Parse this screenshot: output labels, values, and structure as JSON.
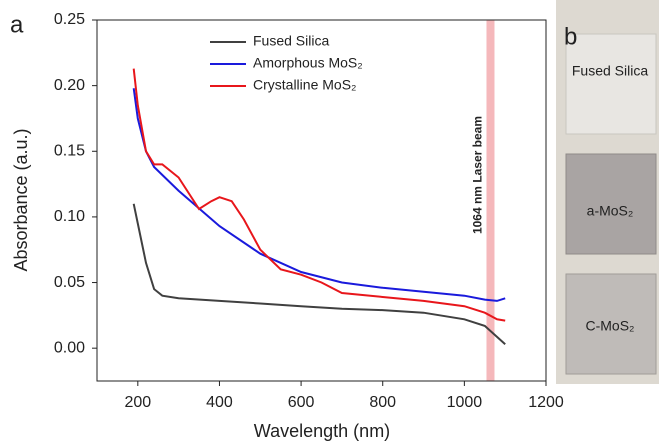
{
  "chart_data": {
    "type": "line",
    "panel_label": "a",
    "x_label": "Wavelength (nm)",
    "y_label": "Absorbance (a.u.)",
    "xlim": [
      100,
      1200
    ],
    "xticks": [
      200,
      400,
      600,
      800,
      1000,
      1200
    ],
    "ylim": [
      -0.025,
      0.25
    ],
    "yticks": [
      {
        "value": 0,
        "label": "0.00"
      },
      0.05,
      {
        "value": 0.1,
        "label": "0.10"
      },
      0.15,
      {
        "value": 0.2,
        "label": "0.20"
      },
      0.25
    ],
    "grid": false,
    "series": [
      {
        "name": "Fused Silica",
        "color": "#404040",
        "x": [
          190,
          200,
          220,
          240,
          260,
          300,
          400,
          500,
          600,
          700,
          800,
          900,
          1000,
          1050,
          1100
        ],
        "values": [
          0.11,
          0.095,
          0.065,
          0.045,
          0.04,
          0.038,
          0.036,
          0.034,
          0.032,
          0.03,
          0.029,
          0.027,
          0.022,
          0.017,
          0.003
        ]
      },
      {
        "name": "Amorphous MoS₂",
        "color": "#1a1adc",
        "x": [
          190,
          200,
          220,
          240,
          300,
          400,
          500,
          600,
          700,
          800,
          900,
          1000,
          1050,
          1080,
          1100
        ],
        "values": [
          0.198,
          0.175,
          0.15,
          0.138,
          0.12,
          0.093,
          0.072,
          0.058,
          0.05,
          0.046,
          0.043,
          0.04,
          0.037,
          0.036,
          0.038
        ]
      },
      {
        "name": "Crystalline MoS₂",
        "color": "#e8161b",
        "x": [
          190,
          200,
          220,
          240,
          260,
          300,
          350,
          380,
          400,
          430,
          460,
          500,
          550,
          600,
          650,
          700,
          800,
          900,
          1000,
          1050,
          1080,
          1100
        ],
        "values": [
          0.213,
          0.185,
          0.15,
          0.14,
          0.14,
          0.13,
          0.106,
          0.112,
          0.115,
          0.112,
          0.098,
          0.075,
          0.06,
          0.056,
          0.05,
          0.042,
          0.039,
          0.036,
          0.032,
          0.027,
          0.022,
          0.021
        ]
      }
    ],
    "band": {
      "x": 1064,
      "label": "1064 nm Laser beam",
      "color": "#f5b8bb"
    }
  },
  "photo": {
    "label": "b",
    "samples": [
      "Fused Silica",
      "a-MoS₂",
      "C-MoS₂"
    ]
  }
}
